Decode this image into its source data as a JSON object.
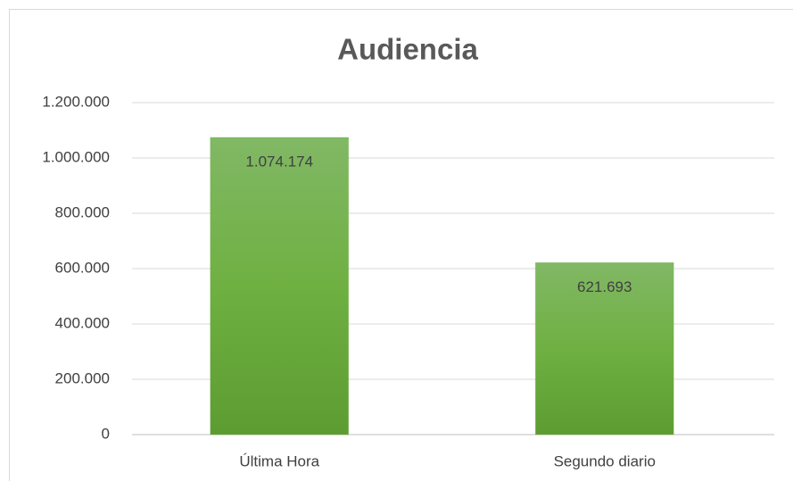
{
  "chart_data": {
    "type": "bar",
    "title": "Audiencia",
    "categories": [
      "Última Hora",
      "Segundo diario"
    ],
    "values": [
      1074174,
      621693
    ],
    "value_labels": [
      "1.074.174",
      "621.693"
    ],
    "color": "#70ad47",
    "ylim": [
      0,
      1200000
    ],
    "yticks": [
      0,
      {
        "value": 200000,
        "label": "200.000"
      },
      {
        "value": 400000,
        "label": "400.000"
      },
      {
        "value": 600000,
        "label": "600.000"
      },
      {
        "value": 800000,
        "label": "800.000"
      },
      {
        "value": 1000000,
        "label": "1.000.000"
      },
      {
        "value": 1200000,
        "label": "1.200.000"
      }
    ],
    "grid": true
  }
}
